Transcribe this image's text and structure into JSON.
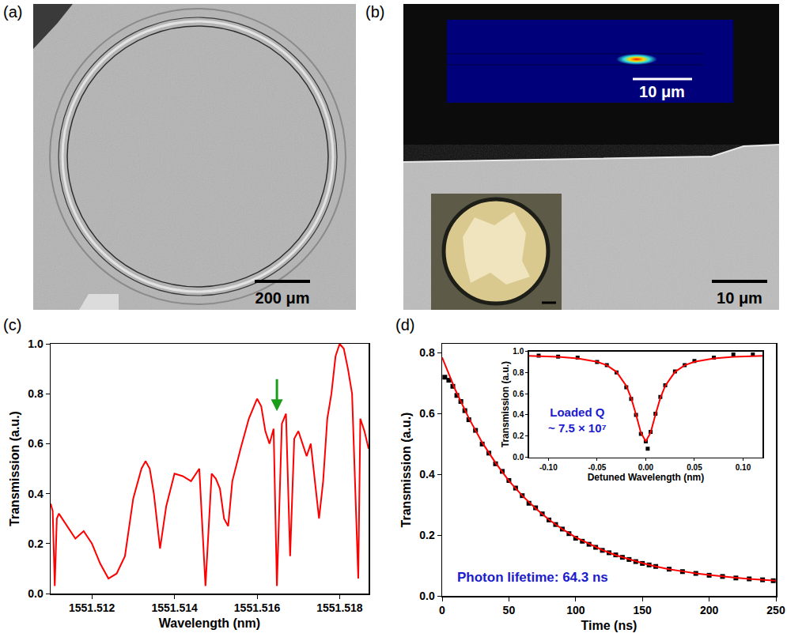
{
  "image_panels": [
    {
      "panel": "(a)",
      "scale_bar": "200 μm"
    },
    {
      "panel": "(b)",
      "scale_bar": "10 μm",
      "inset_scale_bar": "10 μm"
    }
  ],
  "chart_data": [
    {
      "panel": "(c)",
      "type": "line",
      "xlabel": "Wavelength (nm)",
      "ylabel": "Transmission (a.u.)",
      "color": "#ff0000",
      "line_style": "solid",
      "grid": false,
      "xlim": [
        1551.511,
        1551.5187
      ],
      "xticks": [
        1551.512,
        1551.514,
        1551.516,
        1551.518
      ],
      "ylim": [
        0,
        1
      ],
      "yticks": [
        {
          "value": 0,
          "label": "0.0"
        },
        {
          "value": 0.2,
          "label": "0.2"
        },
        {
          "value": 0.4,
          "label": "0.4"
        },
        {
          "value": 0.6,
          "label": "0.6"
        },
        {
          "value": 0.8,
          "label": "0.8"
        },
        {
          "value": 1,
          "label": "1.0"
        }
      ],
      "x": [
        1551.511,
        1551.51105,
        1551.5111,
        1551.51115,
        1551.5112,
        1551.5114,
        1551.5116,
        1551.5118,
        1551.512,
        1551.5122,
        1551.5124,
        1551.5126,
        1551.5128,
        1551.513,
        1551.5132,
        1551.5133,
        1551.5134,
        1551.5135,
        1551.51365,
        1551.5138,
        1551.514,
        1551.5142,
        1551.5144,
        1551.5146,
        1551.51475,
        1551.5149,
        1551.515,
        1551.5151,
        1551.5152,
        1551.5153,
        1551.5154,
        1551.5156,
        1551.5158,
        1551.516,
        1551.5161,
        1551.5162,
        1551.5163,
        1551.5164,
        1551.51648,
        1551.5166,
        1551.5167,
        1551.5168,
        1551.5169,
        1551.517,
        1551.5172,
        1551.5173,
        1551.5175,
        1551.5176,
        1551.5177,
        1551.5178,
        1551.5179,
        1551.518,
        1551.5181,
        1551.5182,
        1551.5183,
        1551.51845,
        1551.5185,
        1551.5186,
        1551.5187
      ],
      "values": [
        0.36,
        0.33,
        0.03,
        0.3,
        0.32,
        0.27,
        0.22,
        0.25,
        0.2,
        0.12,
        0.06,
        0.08,
        0.15,
        0.38,
        0.5,
        0.53,
        0.5,
        0.4,
        0.18,
        0.35,
        0.48,
        0.47,
        0.45,
        0.5,
        0.03,
        0.48,
        0.46,
        0.42,
        0.3,
        0.27,
        0.45,
        0.58,
        0.7,
        0.78,
        0.75,
        0.65,
        0.6,
        0.66,
        0.03,
        0.68,
        0.72,
        0.15,
        0.62,
        0.65,
        0.55,
        0.6,
        0.3,
        0.45,
        0.7,
        0.8,
        0.95,
        1.0,
        0.98,
        0.9,
        0.8,
        0.06,
        0.7,
        0.65,
        0.58
      ],
      "arrow": {
        "x": 1551.51648,
        "y": 0.73,
        "color": "#1a9e1a"
      }
    },
    {
      "panel": "(d)",
      "type": "scatter",
      "xlabel": "Time (ns)",
      "ylabel": "Transmission (a.u.)",
      "grid": false,
      "xlim": [
        0,
        250
      ],
      "xticks": [
        0,
        50,
        100,
        150,
        200,
        250
      ],
      "ylim": [
        0,
        0.83
      ],
      "yticks": [
        {
          "value": 0,
          "label": "0.0"
        },
        {
          "value": 0.2,
          "label": "0.2"
        },
        {
          "value": 0.4,
          "label": "0.4"
        },
        {
          "value": 0.6,
          "label": "0.6"
        },
        {
          "value": 0.8,
          "label": "0.8"
        }
      ],
      "series": [
        {
          "type": "scatter",
          "marker": "square",
          "color": "#000000",
          "x": [
            2,
            5,
            8,
            11,
            14,
            17,
            20,
            25,
            30,
            35,
            40,
            45,
            50,
            55,
            60,
            65,
            70,
            75,
            80,
            85,
            90,
            95,
            100,
            105,
            110,
            115,
            120,
            125,
            130,
            135,
            140,
            145,
            150,
            155,
            160,
            170,
            180,
            190,
            200,
            210,
            220,
            230,
            240,
            248
          ],
          "values": [
            0.72,
            0.71,
            0.69,
            0.66,
            0.64,
            0.61,
            0.58,
            0.545,
            0.5,
            0.47,
            0.435,
            0.41,
            0.38,
            0.355,
            0.33,
            0.305,
            0.29,
            0.27,
            0.25,
            0.235,
            0.22,
            0.205,
            0.19,
            0.18,
            0.17,
            0.16,
            0.15,
            0.142,
            0.135,
            0.127,
            0.12,
            0.113,
            0.107,
            0.102,
            0.097,
            0.088,
            0.08,
            0.074,
            0.068,
            0.064,
            0.059,
            0.056,
            0.053,
            0.05
          ]
        },
        {
          "type": "line",
          "line_style": "solid",
          "color": "#ff0000",
          "x": [
            0,
            10,
            20,
            30,
            40,
            50,
            60,
            70,
            80,
            90,
            100,
            110,
            120,
            130,
            140,
            150,
            160,
            170,
            180,
            190,
            200,
            210,
            220,
            230,
            240,
            250
          ],
          "values": [
            0.785,
            0.677,
            0.585,
            0.505,
            0.438,
            0.379,
            0.33,
            0.288,
            0.251,
            0.22,
            0.193,
            0.171,
            0.151,
            0.134,
            0.12,
            0.108,
            0.097,
            0.088,
            0.081,
            0.074,
            0.069,
            0.064,
            0.06,
            0.056,
            0.053,
            0.05
          ]
        }
      ],
      "annotations": [
        {
          "text": "Photon lifetime: 64.3 ns",
          "x": 10,
          "y": 0.06,
          "color": "#1c1ccc"
        }
      ],
      "inset": {
        "type": "scatter",
        "xlabel": "Detuned Wavelength (nm)",
        "ylabel": "Transmission (a.u.)",
        "grid": false,
        "xlim": [
          -0.12,
          0.12
        ],
        "xticks": [
          {
            "value": -0.1,
            "label": "-0.10"
          },
          {
            "value": -0.05,
            "label": "-0.05"
          },
          {
            "value": 0,
            "label": "0.00"
          },
          {
            "value": 0.05,
            "label": "0.05"
          },
          {
            "value": 0.1,
            "label": "0.10"
          }
        ],
        "ylim": [
          0,
          1
        ],
        "yticks": [
          {
            "value": 0,
            "label": "0.0"
          },
          {
            "value": 0.2,
            "label": "0.2"
          },
          {
            "value": 0.4,
            "label": "0.4"
          },
          {
            "value": 0.6,
            "label": "0.6"
          },
          {
            "value": 0.8,
            "label": "0.8"
          },
          {
            "value": 1,
            "label": "1.0"
          }
        ],
        "series": [
          {
            "type": "scatter",
            "marker": "square",
            "color": "#000000",
            "x": [
              -0.11,
              -0.09,
              -0.07,
              -0.05,
              -0.04,
              -0.03,
              -0.02,
              -0.015,
              -0.01,
              -0.005,
              0,
              0.002,
              0.005,
              0.01,
              0.015,
              0.02,
              0.03,
              0.04,
              0.05,
              0.07,
              0.09,
              0.11
            ],
            "values": [
              0.96,
              0.95,
              0.94,
              0.9,
              0.87,
              0.8,
              0.66,
              0.55,
              0.4,
              0.22,
              0.15,
              0.08,
              0.24,
              0.41,
              0.57,
              0.68,
              0.81,
              0.87,
              0.91,
              0.94,
              0.97,
              0.97
            ]
          },
          {
            "type": "line",
            "line_style": "solid",
            "color": "#ff0000",
            "x": [
              -0.12,
              -0.09,
              -0.07,
              -0.05,
              -0.04,
              -0.03,
              -0.02,
              -0.015,
              -0.01,
              -0.005,
              0,
              0.005,
              0.01,
              0.015,
              0.02,
              0.03,
              0.04,
              0.05,
              0.07,
              0.09,
              0.12
            ],
            "values": [
              0.958,
              0.948,
              0.934,
              0.902,
              0.869,
              0.806,
              0.675,
              0.56,
              0.403,
              0.232,
              0.15,
              0.232,
              0.403,
              0.56,
              0.675,
              0.806,
              0.869,
              0.902,
              0.934,
              0.948,
              0.958
            ]
          }
        ],
        "annotations": [
          {
            "text": [
              "Loaded Q",
              "~ 7.5 × 10⁷"
            ],
            "x": -0.07,
            "y": 0.35,
            "color": "#1c1ccc"
          }
        ]
      }
    }
  ]
}
